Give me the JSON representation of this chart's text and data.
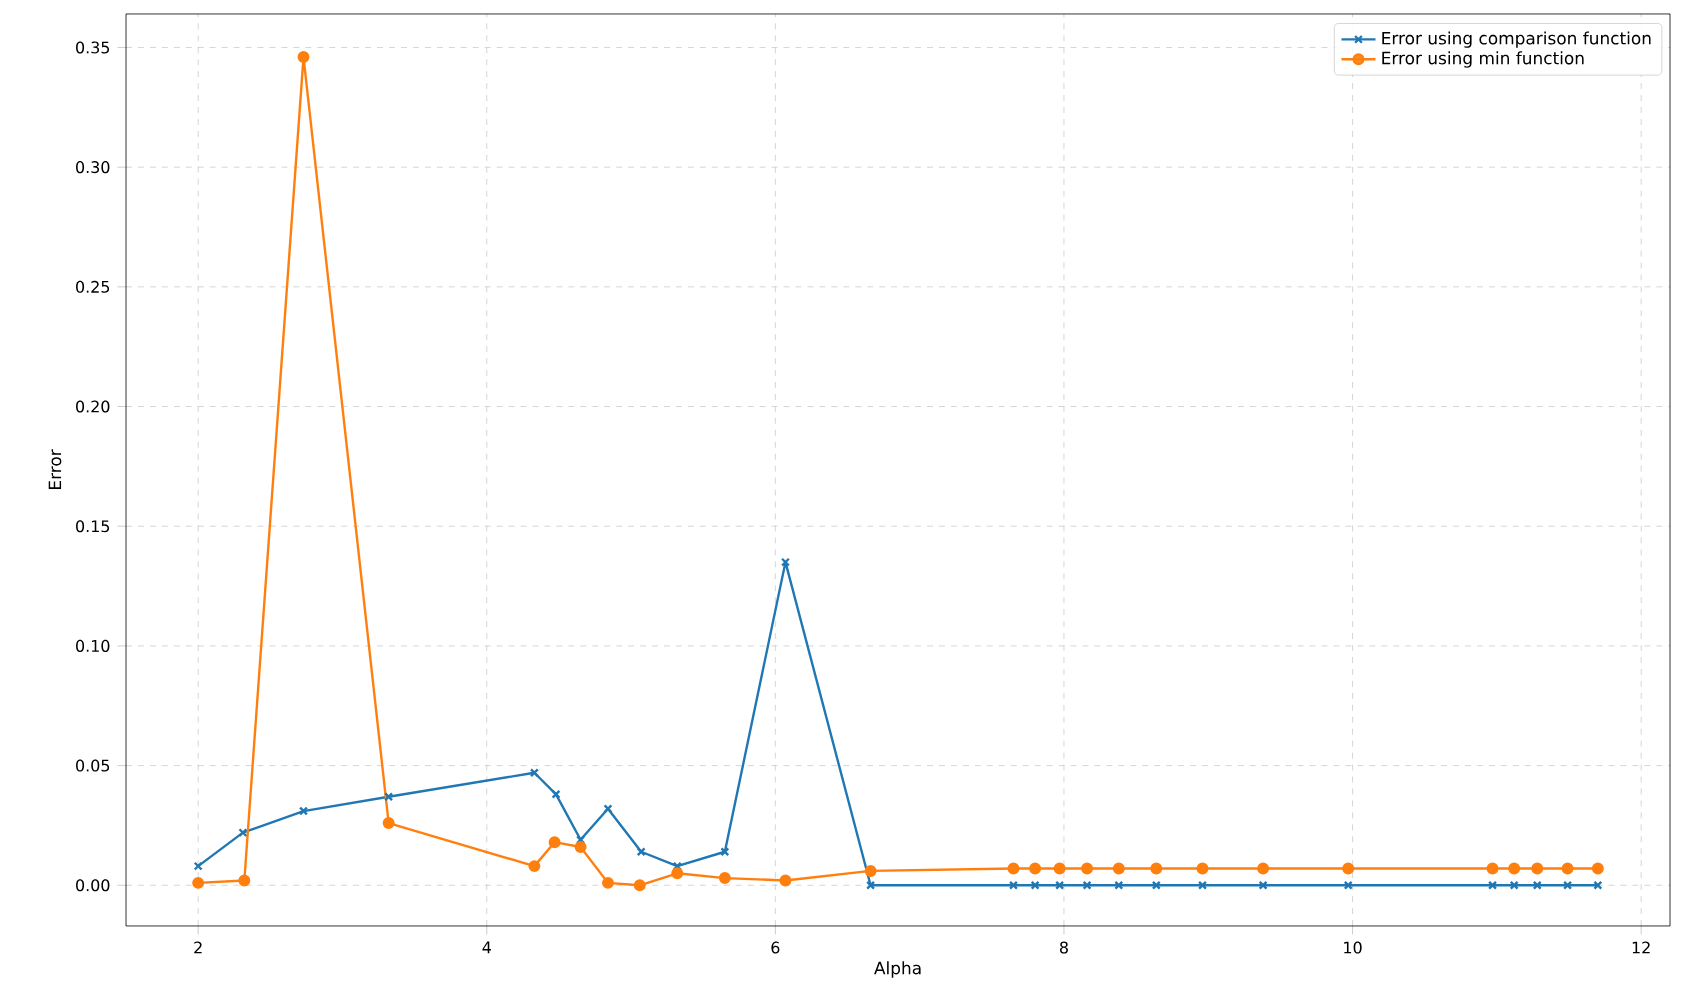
{
  "chart_data": {
    "type": "line",
    "xlabel": "Alpha",
    "ylabel": "Error",
    "xlim": [
      1.5,
      12.2
    ],
    "ylim": [
      -0.017,
      0.364
    ],
    "xticks": [
      2,
      4,
      6,
      8,
      10,
      12
    ],
    "yticks": [
      {
        "value": 0,
        "label": "0.00"
      },
      {
        "value": 0.05,
        "label": "0.05"
      },
      {
        "value": 0.1,
        "label": "0.10"
      },
      {
        "value": 0.15,
        "label": "0.15"
      },
      {
        "value": 0.2,
        "label": "0.20"
      },
      {
        "value": 0.25,
        "label": "0.25"
      },
      {
        "value": 0.3,
        "label": "0.30"
      },
      {
        "value": 0.35,
        "label": "0.35"
      }
    ],
    "grid": true,
    "legend": "top right",
    "line_style": "solid",
    "series": [
      {
        "name": "Error using comparison function",
        "color": "#1f77b4",
        "marker": "cross",
        "x": [
          2.0,
          2.31,
          2.73,
          3.32,
          4.33,
          4.48,
          4.65,
          4.84,
          5.07,
          5.32,
          5.65,
          6.07,
          6.66,
          7.65,
          7.8,
          7.97,
          8.16,
          8.38,
          8.64,
          8.96,
          9.38,
          9.97,
          10.97,
          11.12,
          11.28,
          11.49,
          11.7
        ],
        "values": [
          0.008,
          0.022,
          0.031,
          0.037,
          0.047,
          0.038,
          0.019,
          0.032,
          0.014,
          0.008,
          0.014,
          0.135,
          0,
          0,
          0,
          0,
          0,
          0,
          0,
          0,
          0,
          0,
          0,
          0,
          0,
          0,
          0
        ]
      },
      {
        "name": "Error using min function",
        "color": "#ff7f0e",
        "marker": "circle",
        "x": [
          2.0,
          2.32,
          2.73,
          3.32,
          4.33,
          4.47,
          4.65,
          4.84,
          5.06,
          5.32,
          5.65,
          6.07,
          6.66,
          7.65,
          7.8,
          7.97,
          8.16,
          8.38,
          8.64,
          8.96,
          9.38,
          9.97,
          10.97,
          11.12,
          11.28,
          11.49,
          11.7
        ],
        "values": [
          0.001,
          0.002,
          0.346,
          0.026,
          0.008,
          0.018,
          0.016,
          0.001,
          0,
          0.005,
          0.003,
          0.002,
          0.006,
          0.007,
          0.007,
          0.007,
          0.007,
          0.007,
          0.007,
          0.007,
          0.007,
          0.007,
          0.007,
          0.007,
          0.007,
          0.007,
          0.007
        ]
      }
    ]
  }
}
